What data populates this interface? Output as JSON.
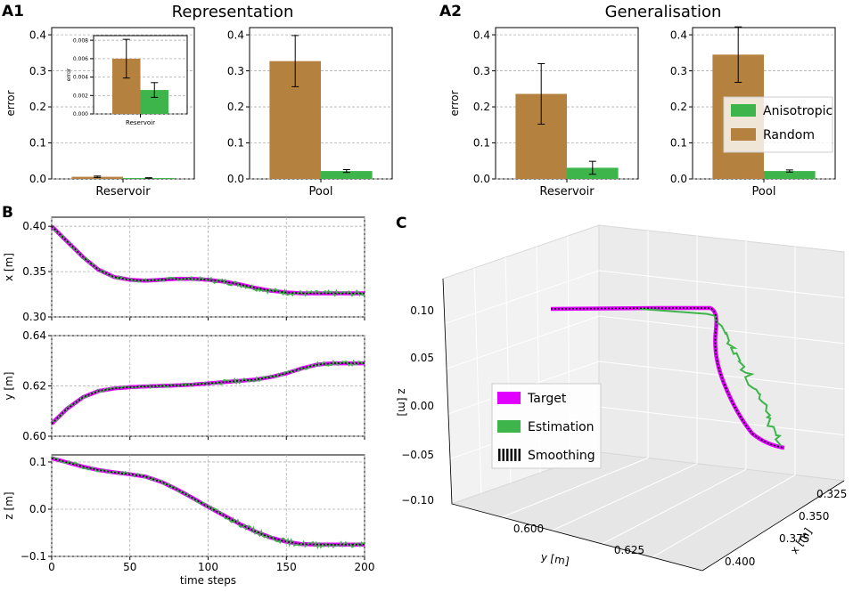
{
  "panel_labels": {
    "A1": "A1",
    "A2": "A2",
    "B": "B",
    "C": "C"
  },
  "colors": {
    "random": "#b5813e",
    "anisotropic": "#3db54a",
    "target": "#e100ff",
    "estimation": "#3db54a",
    "smoothing": "#111111",
    "grid": "#b0b0b0"
  },
  "chart_data": [
    {
      "id": "a1_reservoir",
      "type": "bar",
      "title": "Representation",
      "ylabel": "error",
      "xlabel": "Reservoir",
      "ylim": [
        0,
        0.42
      ],
      "yticks": [
        0.0,
        0.1,
        0.2,
        0.3,
        0.4
      ],
      "ytick_labels": [
        "0.0",
        "0.1",
        "0.2",
        "0.3",
        "0.4"
      ],
      "series": [
        {
          "name": "Random",
          "values": [
            0.006
          ],
          "err": [
            0.002
          ]
        },
        {
          "name": "Anisotropic",
          "values": [
            0.0026
          ],
          "err": [
            0.0008
          ]
        }
      ]
    },
    {
      "id": "a1_inset",
      "type": "bar",
      "title": "",
      "ylabel": "error",
      "xlabel": "Reservoir",
      "ylim": [
        0,
        0.0085
      ],
      "yticks": [
        0,
        0.002,
        0.004,
        0.006,
        0.008
      ],
      "ytick_labels": [
        "0.000",
        "0.002",
        "0.004",
        "0.006",
        "0.008"
      ],
      "series": [
        {
          "name": "Random",
          "values": [
            0.006
          ],
          "err": [
            0.0021
          ]
        },
        {
          "name": "Anisotropic",
          "values": [
            0.0026
          ],
          "err": [
            0.0008
          ]
        }
      ]
    },
    {
      "id": "a1_pool",
      "type": "bar",
      "title": "",
      "ylabel": "",
      "xlabel": "Pool",
      "ylim": [
        0,
        0.42
      ],
      "yticks": [
        0.0,
        0.1,
        0.2,
        0.3,
        0.4
      ],
      "ytick_labels": [
        "0.0",
        "0.1",
        "0.2",
        "0.3",
        "0.4"
      ],
      "series": [
        {
          "name": "Random",
          "values": [
            0.327
          ],
          "err": [
            0.071
          ]
        },
        {
          "name": "Anisotropic",
          "values": [
            0.022
          ],
          "err": [
            0.004
          ]
        }
      ]
    },
    {
      "id": "a2_reservoir",
      "type": "bar",
      "title": "Generalisation",
      "ylabel": "error",
      "xlabel": "Reservoir",
      "ylim": [
        0,
        0.42
      ],
      "yticks": [
        0.0,
        0.1,
        0.2,
        0.3,
        0.4
      ],
      "ytick_labels": [
        "0.0",
        "0.1",
        "0.2",
        "0.3",
        "0.4"
      ],
      "series": [
        {
          "name": "Random",
          "values": [
            0.236
          ],
          "err": [
            0.084
          ]
        },
        {
          "name": "Anisotropic",
          "values": [
            0.031
          ],
          "err": [
            0.018
          ]
        }
      ]
    },
    {
      "id": "a2_pool",
      "type": "bar",
      "title": "",
      "ylabel": "",
      "xlabel": "Pool",
      "ylim": [
        0,
        0.42
      ],
      "yticks": [
        0.0,
        0.1,
        0.2,
        0.3,
        0.4
      ],
      "ytick_labels": [
        "0.0",
        "0.1",
        "0.2",
        "0.3",
        "0.4"
      ],
      "series": [
        {
          "name": "Random",
          "values": [
            0.345
          ],
          "err": [
            0.077
          ]
        },
        {
          "name": "Anisotropic",
          "values": [
            0.022
          ],
          "err": [
            0.003
          ]
        }
      ],
      "legend": [
        "Anisotropic",
        "Random"
      ]
    },
    {
      "id": "b_x",
      "type": "line",
      "ylabel": "x [m]",
      "xlim": [
        0,
        200
      ],
      "ylim": [
        0.3,
        0.41
      ],
      "yticks": [
        0.3,
        0.35,
        0.4
      ],
      "ytick_labels": [
        "0.30",
        "0.35",
        "0.40"
      ],
      "xticks": [
        0,
        50,
        100,
        150,
        200
      ],
      "x": [
        0,
        10,
        20,
        30,
        40,
        50,
        60,
        70,
        80,
        90,
        100,
        110,
        120,
        130,
        140,
        150,
        160,
        170,
        180,
        190,
        200
      ],
      "series": [
        {
          "name": "Target",
          "values": [
            0.4,
            0.383,
            0.366,
            0.352,
            0.344,
            0.341,
            0.34,
            0.341,
            0.342,
            0.342,
            0.341,
            0.339,
            0.336,
            0.332,
            0.329,
            0.327,
            0.326,
            0.326,
            0.326,
            0.326,
            0.326
          ]
        }
      ]
    },
    {
      "id": "b_y",
      "type": "line",
      "ylabel": "y [m]",
      "xlim": [
        0,
        200
      ],
      "ylim": [
        0.6,
        0.64
      ],
      "yticks": [
        0.6,
        0.62,
        0.64
      ],
      "ytick_labels": [
        "0.60",
        "0.62",
        "0.64"
      ],
      "xticks": [
        0,
        50,
        100,
        150,
        200
      ],
      "x": [
        0,
        10,
        20,
        30,
        40,
        50,
        60,
        70,
        80,
        90,
        100,
        110,
        120,
        130,
        140,
        150,
        160,
        170,
        180,
        190,
        200
      ],
      "series": [
        {
          "name": "Target",
          "values": [
            0.605,
            0.611,
            0.6155,
            0.618,
            0.619,
            0.6195,
            0.6198,
            0.62,
            0.6202,
            0.6205,
            0.621,
            0.6215,
            0.622,
            0.6225,
            0.6235,
            0.625,
            0.627,
            0.6285,
            0.629,
            0.629,
            0.629
          ]
        }
      ]
    },
    {
      "id": "b_z",
      "type": "line",
      "ylabel": "z [m]",
      "xlabel": "time steps",
      "xlim": [
        0,
        200
      ],
      "ylim": [
        -0.1,
        0.115
      ],
      "yticks": [
        -0.1,
        0.0,
        0.1
      ],
      "ytick_labels": [
        "−0.1",
        "0.0",
        "0.1"
      ],
      "xticks": [
        0,
        50,
        100,
        150,
        200
      ],
      "xtick_labels": [
        "0",
        "50",
        "100",
        "150",
        "200"
      ],
      "x": [
        0,
        10,
        20,
        30,
        40,
        50,
        60,
        70,
        80,
        90,
        100,
        110,
        120,
        130,
        140,
        150,
        160,
        170,
        180,
        190,
        200
      ],
      "series": [
        {
          "name": "Target",
          "values": [
            0.108,
            0.099,
            0.09,
            0.083,
            0.078,
            0.074,
            0.069,
            0.058,
            0.042,
            0.024,
            0.005,
            -0.013,
            -0.031,
            -0.047,
            -0.06,
            -0.069,
            -0.074,
            -0.075,
            -0.075,
            -0.075,
            -0.075
          ]
        }
      ]
    },
    {
      "id": "c_3d",
      "type": "line",
      "zlabel": "z [m]",
      "ylabel": "y [m]",
      "xlabel": "x [m]",
      "ztick_labels": [
        "0.10",
        "0.05",
        "0.00",
        "−0.05",
        "−0.10"
      ],
      "ytick_labels": [
        "0.600",
        "0.625"
      ],
      "xtick_labels": [
        "0.325",
        "0.350",
        "0.375",
        "0.400"
      ],
      "legend": [
        "Target",
        "Estimation",
        "Smoothing"
      ]
    }
  ]
}
